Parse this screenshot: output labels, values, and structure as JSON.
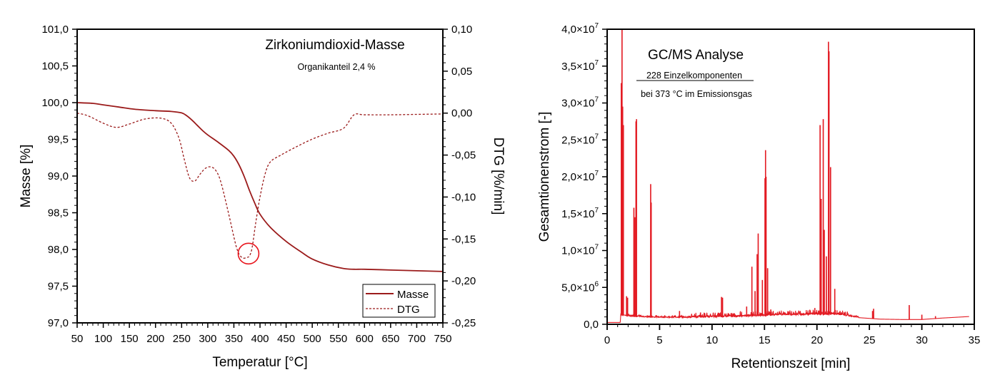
{
  "chart_data": [
    {
      "id": "tga",
      "type": "line",
      "title": "Zirkoniumdioxid-Masse",
      "subtitle": "Organikanteil 2,4 %",
      "xlabel": "Temperatur [°C]",
      "ylabel": "Masse [%]",
      "y2label": "DTG [%/min]",
      "xlim": [
        50,
        750
      ],
      "ylim": [
        97.0,
        101.0
      ],
      "y2lim": [
        -0.25,
        0.1
      ],
      "x_ticks": [
        "50",
        "100",
        "150",
        "200",
        "250",
        "300",
        "350",
        "400",
        "450",
        "500",
        "550",
        "600",
        "650",
        "700",
        "750"
      ],
      "y_ticks": [
        "97,0",
        "97,5",
        "98,0",
        "98,5",
        "99,0",
        "99,5",
        "100,0",
        "100,5",
        "101,0"
      ],
      "y2_ticks": [
        "-0,25",
        "-0,20",
        "-0,15",
        "-0,10",
        "-0,05",
        "0,00",
        "0,05",
        "0,10"
      ],
      "grid": false,
      "legend_position": "bottom-right",
      "series": [
        {
          "name": "Masse",
          "axis": "left",
          "style": "solid",
          "color": "#9b1b1b",
          "x": [
            50,
            80,
            100,
            130,
            160,
            200,
            230,
            250,
            260,
            270,
            280,
            290,
            300,
            320,
            340,
            350,
            360,
            370,
            380,
            390,
            400,
            420,
            450,
            480,
            500,
            530,
            560,
            580,
            600,
            650,
            700,
            750
          ],
          "y": [
            100.0,
            99.99,
            99.97,
            99.94,
            99.91,
            99.89,
            99.88,
            99.86,
            99.82,
            99.76,
            99.69,
            99.62,
            99.56,
            99.46,
            99.35,
            99.27,
            99.15,
            98.99,
            98.8,
            98.63,
            98.48,
            98.3,
            98.11,
            97.96,
            97.87,
            97.79,
            97.74,
            97.73,
            97.73,
            97.72,
            97.71,
            97.7
          ]
        },
        {
          "name": "DTG",
          "axis": "right",
          "style": "dashed",
          "color": "#9b1b1b",
          "x": [
            50,
            70,
            100,
            125,
            150,
            180,
            210,
            230,
            245,
            255,
            265,
            275,
            285,
            295,
            305,
            315,
            325,
            340,
            355,
            365,
            375,
            380,
            385,
            392,
            400,
            410,
            420,
            440,
            470,
            500,
            530,
            560,
            580,
            600,
            650,
            700,
            750
          ],
          "y": [
            0.0,
            -0.003,
            -0.012,
            -0.017,
            -0.013,
            -0.007,
            -0.006,
            -0.012,
            -0.03,
            -0.055,
            -0.077,
            -0.081,
            -0.073,
            -0.066,
            -0.064,
            -0.068,
            -0.082,
            -0.12,
            -0.16,
            -0.172,
            -0.172,
            -0.17,
            -0.16,
            -0.13,
            -0.1,
            -0.072,
            -0.058,
            -0.05,
            -0.04,
            -0.031,
            -0.024,
            -0.018,
            -0.002,
            -0.002,
            -0.002,
            -0.0015,
            -0.001
          ]
        }
      ],
      "annotations": [
        {
          "type": "circle",
          "label": "DTG minimum",
          "x": 378,
          "y2": -0.17,
          "color": "#e8141c"
        }
      ],
      "legend": [
        {
          "label": "Masse",
          "style": "solid"
        },
        {
          "label": "DTG",
          "style": "dashed"
        }
      ]
    },
    {
      "id": "gcms",
      "type": "line",
      "title": "GC/MS Analyse",
      "subtitle_underlined": "228 Einzelkomponenten",
      "subtitle2": "bei 373 °C im Emissionsgas",
      "xlabel": "Retentionszeit [min]",
      "ylabel": "Gesamtionenstrom [-]",
      "xlim": [
        0,
        35
      ],
      "ylim": [
        0,
        40000000
      ],
      "x_ticks": [
        "0",
        "5",
        "10",
        "15",
        "20",
        "25",
        "30",
        "35"
      ],
      "y_ticks": [
        {
          "mantissa": "0,0",
          "exp": ""
        },
        {
          "mantissa": "5,0×10",
          "exp": "6"
        },
        {
          "mantissa": "1,0×10",
          "exp": "7"
        },
        {
          "mantissa": "1,5×10",
          "exp": "7"
        },
        {
          "mantissa": "2,0×10",
          "exp": "7"
        },
        {
          "mantissa": "2,5×10",
          "exp": "7"
        },
        {
          "mantissa": "3,0×10",
          "exp": "7"
        },
        {
          "mantissa": "3,5×10",
          "exp": "7"
        },
        {
          "mantissa": "4,0×10",
          "exp": "7"
        }
      ],
      "grid": false,
      "color": "#e31b23",
      "baseline": [
        [
          0,
          250000
        ],
        [
          1.25,
          250000
        ],
        [
          1.3,
          1300000
        ],
        [
          2.0,
          1100000
        ],
        [
          4,
          950000
        ],
        [
          8,
          900000
        ],
        [
          12,
          1000000
        ],
        [
          16,
          1200000
        ],
        [
          19.5,
          1300000
        ],
        [
          22,
          1300000
        ],
        [
          24,
          900000
        ],
        [
          26,
          700000
        ],
        [
          28,
          650000
        ],
        [
          30,
          650000
        ],
        [
          32,
          850000
        ],
        [
          34.5,
          1050000
        ]
      ],
      "peaks": [
        [
          1.35,
          32700000
        ],
        [
          1.42,
          40000000
        ],
        [
          1.48,
          29500000
        ],
        [
          1.55,
          27000000
        ],
        [
          1.85,
          3800000
        ],
        [
          1.95,
          3600000
        ],
        [
          2.55,
          15800000
        ],
        [
          2.65,
          14500000
        ],
        [
          2.75,
          27500000
        ],
        [
          2.8,
          27800000
        ],
        [
          4.15,
          19000000
        ],
        [
          4.2,
          16500000
        ],
        [
          6.9,
          1800000
        ],
        [
          8.9,
          1600000
        ],
        [
          9.3,
          1500000
        ],
        [
          10.9,
          3700000
        ],
        [
          11.0,
          3600000
        ],
        [
          13.3,
          2400000
        ],
        [
          13.8,
          7800000
        ],
        [
          14.1,
          4500000
        ],
        [
          14.3,
          9500000
        ],
        [
          14.4,
          12300000
        ],
        [
          14.8,
          6000000
        ],
        [
          15.05,
          19800000
        ],
        [
          15.1,
          23600000
        ],
        [
          15.15,
          20000000
        ],
        [
          15.3,
          7600000
        ],
        [
          15.6,
          2000000
        ],
        [
          19.8,
          2200000
        ],
        [
          20.3,
          27000000
        ],
        [
          20.4,
          17000000
        ],
        [
          20.6,
          27800000
        ],
        [
          20.7,
          12800000
        ],
        [
          20.9,
          9200000
        ],
        [
          21.1,
          38300000
        ],
        [
          21.15,
          37000000
        ],
        [
          21.3,
          21300000
        ],
        [
          21.7,
          4800000
        ],
        [
          22.2,
          1800000
        ],
        [
          25.3,
          1800000
        ],
        [
          25.4,
          2100000
        ],
        [
          28.8,
          2600000
        ],
        [
          30.0,
          1300000
        ],
        [
          31.3,
          1100000
        ]
      ]
    }
  ]
}
